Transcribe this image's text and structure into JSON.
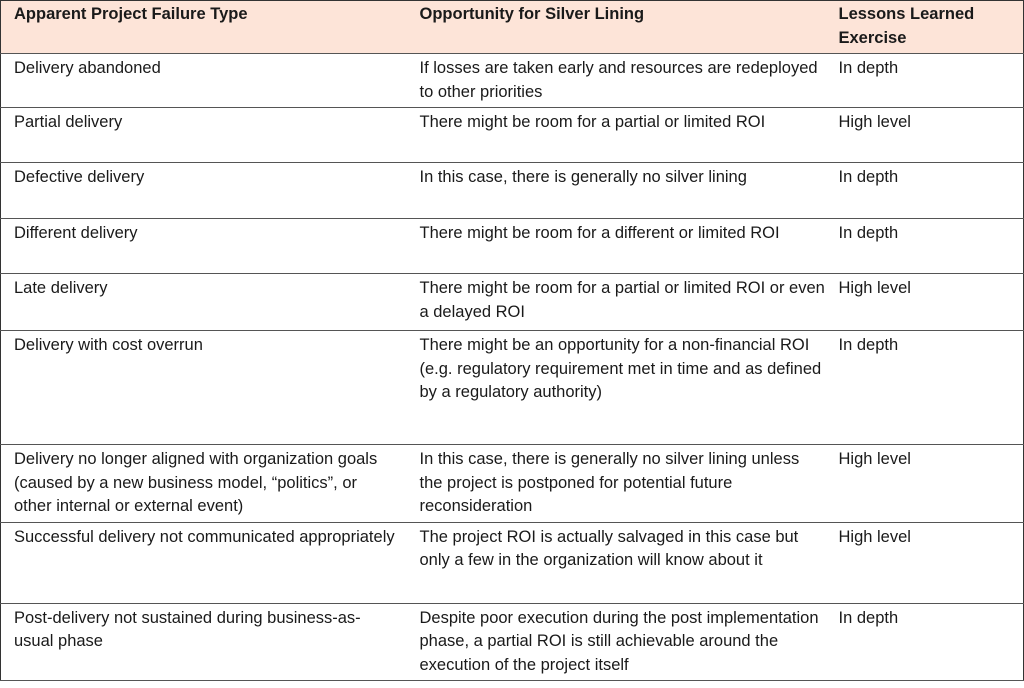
{
  "headers": [
    "Apparent Project Failure Type",
    "Opportunity for Silver Lining",
    "Lessons Learned Exercise"
  ],
  "rows": [
    [
      "Delivery abandoned",
      "If losses are taken early and resources are redeployed to other priorities",
      "In depth"
    ],
    [
      "Partial delivery",
      "There might be room for a partial or limited ROI",
      "High level"
    ],
    [
      "Defective delivery",
      "In this case, there is generally no silver lining",
      "In depth"
    ],
    [
      "Different delivery",
      "There might be room for a different or limited ROI",
      "In depth"
    ],
    [
      "Late delivery",
      "There might be room for a partial or limited ROI or even a delayed ROI",
      "High level"
    ],
    [
      "Delivery with cost overrun",
      "There might be an opportunity for a non-financial ROI (e.g. regulatory requirement met in time and as defined by a regulatory authority)",
      "In depth"
    ],
    [
      "Delivery no longer aligned with organization goals (caused by a new business model, “politics”, or other internal or external event)",
      "In this case, there is generally no silver lining unless the project is postponed for potential future reconsideration",
      "High level"
    ],
    [
      "Successful delivery not communicated appropriately",
      "The project ROI is actually salvaged in this case but only a few in the organization will know about it",
      "High level"
    ],
    [
      "Post-delivery not sustained during business-as-usual phase",
      "Despite poor execution during the post implementation phase, a partial ROI is still achievable around the execution of the project itself",
      "In depth"
    ]
  ]
}
